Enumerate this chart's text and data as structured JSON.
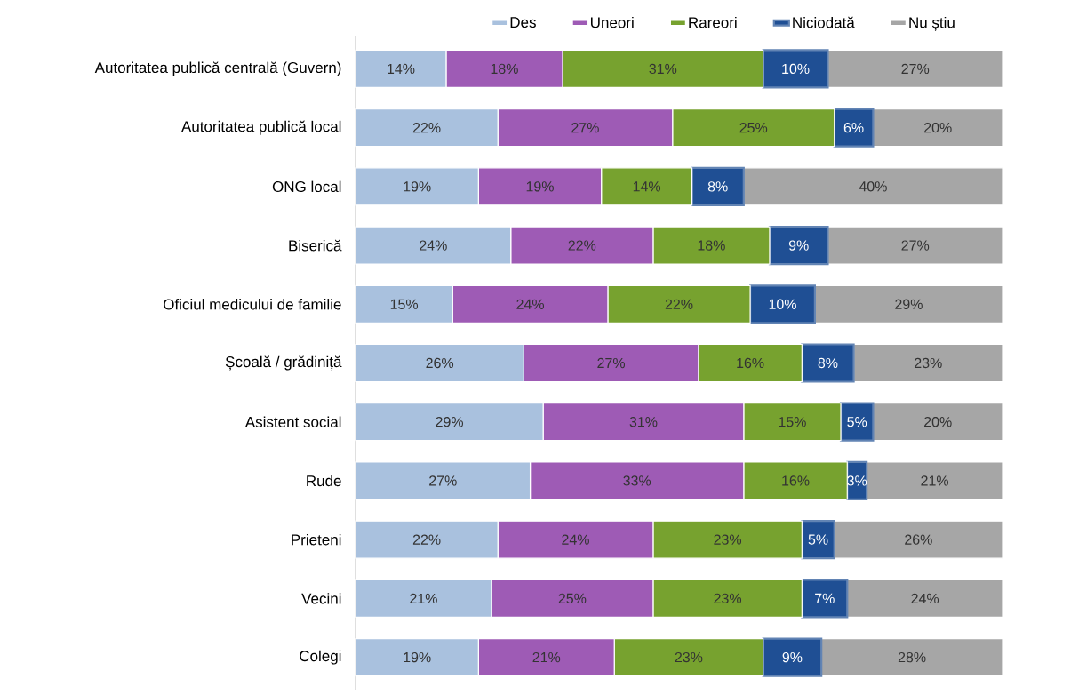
{
  "chart_data": {
    "type": "bar",
    "orientation": "horizontal",
    "stacked": true,
    "legend": "top",
    "tick_labels": "y",
    "categories": [
      "Autoritatea publică centrală (Guvern)",
      "Autoritatea publică local",
      "ONG local",
      "Biserică",
      "Oficiul medicului de familie",
      "Școală / grădiniță",
      "Asistent social",
      "Rude",
      "Prieteni",
      "Vecini",
      "Colegi"
    ],
    "series": [
      {
        "name": "Des",
        "color": "#a9c1de",
        "values": [
          14,
          22,
          19,
          24,
          15,
          26,
          29,
          27,
          22,
          21,
          19
        ],
        "value_labels": [
          "14%",
          "22%",
          "19%",
          "24%",
          "15%",
          "26%",
          "29%",
          "27%",
          "22%",
          "21%",
          "19%"
        ]
      },
      {
        "name": "Uneori",
        "color": "#9e5bb5",
        "values": [
          18,
          27,
          19,
          22,
          24,
          27,
          31,
          33,
          24,
          25,
          21
        ],
        "value_labels": [
          "18%",
          "27%",
          "19%",
          "22%",
          "24%",
          "27%",
          "31%",
          "33%",
          "24%",
          "25%",
          "21%"
        ]
      },
      {
        "name": "Rareori",
        "color": "#77a22f",
        "values": [
          31,
          25,
          14,
          18,
          22,
          16,
          15,
          16,
          23,
          23,
          23
        ],
        "value_labels": [
          "31%",
          "25%",
          "14%",
          "18%",
          "22%",
          "16%",
          "15%",
          "16%",
          "23%",
          "23%",
          "23%"
        ]
      },
      {
        "name": "Niciodată",
        "color": "#1f4f94",
        "values": [
          10,
          6,
          8,
          9,
          10,
          8,
          5,
          3,
          5,
          7,
          9
        ],
        "value_labels": [
          "10%",
          "6%",
          "8%",
          "9%",
          "10%",
          "8%",
          "5%",
          "3%",
          "5%",
          "7%",
          "9%"
        ]
      },
      {
        "name": "Nu știu",
        "color": "#a6a6a6",
        "values": [
          27,
          20,
          40,
          27,
          29,
          23,
          20,
          21,
          26,
          24,
          28
        ],
        "value_labels": [
          "27%",
          "20%",
          "40%",
          "27%",
          "29%",
          "23%",
          "20%",
          "21%",
          "26%",
          "24%",
          "28%"
        ]
      }
    ]
  }
}
